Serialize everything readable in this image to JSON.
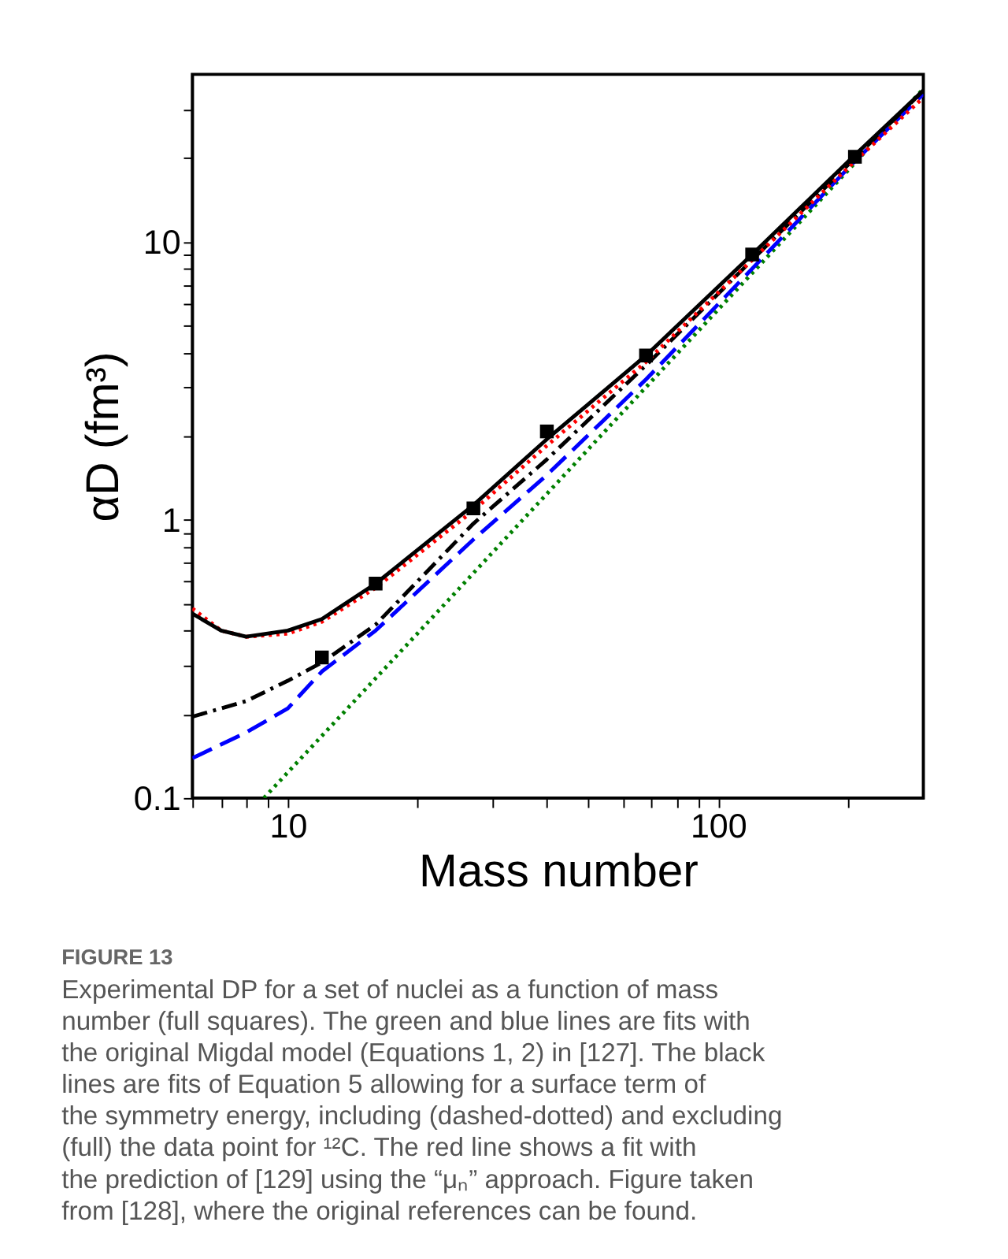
{
  "chart_data": {
    "type": "line",
    "xlabel": "Mass number",
    "ylabel": "αD (fm³)",
    "log": "xy",
    "grid": false,
    "xlim": [
      6,
      300
    ],
    "ylim": [
      0.1,
      40
    ],
    "xticks": [
      {
        "value": 6,
        "label": null
      },
      {
        "value": 7,
        "label": null
      },
      {
        "value": 8,
        "label": null
      },
      {
        "value": 9,
        "label": null
      },
      10,
      {
        "value": 20,
        "label": null
      },
      {
        "value": 30,
        "label": null
      },
      {
        "value": 40,
        "label": null
      },
      {
        "value": 50,
        "label": null
      },
      {
        "value": 60,
        "label": null
      },
      {
        "value": 70,
        "label": null
      },
      {
        "value": 80,
        "label": null
      },
      {
        "value": 90,
        "label": null
      },
      100,
      {
        "value": 200,
        "label": null
      }
    ],
    "yticks": [
      0.1,
      {
        "value": 0.2,
        "label": null
      },
      {
        "value": 0.3,
        "label": null
      },
      {
        "value": 0.4,
        "label": null
      },
      {
        "value": 0.5,
        "label": null
      },
      {
        "value": 0.6,
        "label": null
      },
      {
        "value": 0.7,
        "label": null
      },
      {
        "value": 0.8,
        "label": null
      },
      {
        "value": 0.9,
        "label": null
      },
      1,
      {
        "value": 2,
        "label": null
      },
      {
        "value": 3,
        "label": null
      },
      {
        "value": 4,
        "label": null
      },
      {
        "value": 5,
        "label": null
      },
      {
        "value": 6,
        "label": null
      },
      {
        "value": 7,
        "label": null
      },
      {
        "value": 8,
        "label": null
      },
      {
        "value": 9,
        "label": null
      },
      10,
      {
        "value": 20,
        "label": null
      },
      {
        "value": 30,
        "label": null
      }
    ],
    "series": [
      {
        "color": "#008000",
        "line_style": "dotted",
        "x": [
          8.8,
          20,
          50,
          100,
          200,
          300
        ],
        "values": [
          0.1,
          0.39,
          1.8,
          5.7,
          18,
          35.5
        ]
      },
      {
        "color": "#0000ff",
        "line_style": "dashed",
        "x": [
          6,
          8,
          10,
          12,
          16,
          27,
          40,
          68,
          120,
          208,
          300
        ],
        "values": [
          0.139,
          0.172,
          0.21,
          0.285,
          0.4,
          0.85,
          1.45,
          3.2,
          8.0,
          19.5,
          34
        ]
      },
      {
        "color": "#000000",
        "line_style": "dashdot",
        "x": [
          6,
          8,
          10,
          12,
          16,
          27,
          40,
          68,
          120,
          208,
          300
        ],
        "values": [
          0.196,
          0.223,
          0.264,
          0.307,
          0.42,
          0.97,
          1.65,
          3.6,
          8.6,
          20,
          35
        ]
      },
      {
        "color": "#ff0000",
        "line_style": "dotted",
        "x": [
          6,
          7,
          8,
          10,
          12,
          16,
          27,
          40,
          68,
          120,
          208,
          300
        ],
        "values": [
          0.48,
          0.4,
          0.38,
          0.39,
          0.43,
          0.57,
          1.08,
          1.85,
          3.7,
          8.6,
          19.5,
          33
        ]
      },
      {
        "color": "#000000",
        "line_style": "solid",
        "x": [
          6,
          7,
          8,
          10,
          12,
          16,
          27,
          40,
          68,
          120,
          208,
          300
        ],
        "values": [
          0.46,
          0.4,
          0.38,
          0.4,
          0.44,
          0.59,
          1.13,
          1.95,
          3.9,
          9.0,
          20.5,
          35
        ]
      },
      {
        "type": "scatter",
        "color": "#000000",
        "marker": "square",
        "x": [
          12,
          16,
          27,
          40,
          68,
          120,
          208
        ],
        "values": [
          0.32,
          0.59,
          1.1,
          2.08,
          3.9,
          9.0,
          20.2
        ]
      }
    ],
    "annotations": [
      "FIGURE 13",
      "Experimental DP for a set of nuclei as a function of mass number (full squares). The green and blue lines are fits with the original Migdal model (Equations 1, 2) in [127]. The black lines are fits of Equation 5 allowing for a surface term of the symmetry energy, including (dashed-dotted) and excluding (full) the data point for ¹²C. The red line shows a fit with the prediction of [129] using the “μₙ” approach. Figure taken from [128], where the original references can be found."
    ]
  }
}
